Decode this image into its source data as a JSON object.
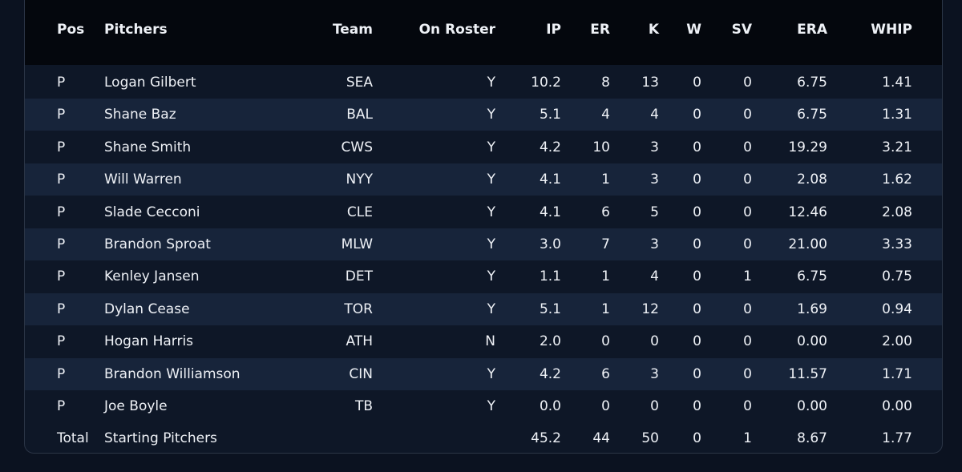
{
  "table": {
    "headers": [
      "Pos",
      "Pitchers",
      "Team",
      "On Roster",
      "IP",
      "ER",
      "K",
      "W",
      "SV",
      "ERA",
      "WHIP"
    ],
    "rows": [
      [
        "P",
        "Logan Gilbert",
        "SEA",
        "Y",
        "10.2",
        "8",
        "13",
        "0",
        "0",
        "6.75",
        "1.41"
      ],
      [
        "P",
        "Shane Baz",
        "BAL",
        "Y",
        "5.1",
        "4",
        "4",
        "0",
        "0",
        "6.75",
        "1.31"
      ],
      [
        "P",
        "Shane Smith",
        "CWS",
        "Y",
        "4.2",
        "10",
        "3",
        "0",
        "0",
        "19.29",
        "3.21"
      ],
      [
        "P",
        "Will Warren",
        "NYY",
        "Y",
        "4.1",
        "1",
        "3",
        "0",
        "0",
        "2.08",
        "1.62"
      ],
      [
        "P",
        "Slade Cecconi",
        "CLE",
        "Y",
        "4.1",
        "6",
        "5",
        "0",
        "0",
        "12.46",
        "2.08"
      ],
      [
        "P",
        "Brandon Sproat",
        "MLW",
        "Y",
        "3.0",
        "7",
        "3",
        "0",
        "0",
        "21.00",
        "3.33"
      ],
      [
        "P",
        "Kenley Jansen",
        "DET",
        "Y",
        "1.1",
        "1",
        "4",
        "0",
        "1",
        "6.75",
        "0.75"
      ],
      [
        "P",
        "Dylan Cease",
        "TOR",
        "Y",
        "5.1",
        "1",
        "12",
        "0",
        "0",
        "1.69",
        "0.94"
      ],
      [
        "P",
        "Hogan Harris",
        "ATH",
        "N",
        "2.0",
        "0",
        "0",
        "0",
        "0",
        "0.00",
        "2.00"
      ],
      [
        "P",
        "Brandon Williamson",
        "CIN",
        "Y",
        "4.2",
        "6",
        "3",
        "0",
        "0",
        "11.57",
        "1.71"
      ],
      [
        "P",
        "Joe Boyle",
        "TB",
        "Y",
        "0.0",
        "0",
        "0",
        "0",
        "0",
        "0.00",
        "0.00"
      ]
    ],
    "total": [
      "Total",
      "Starting Pitchers",
      null,
      null,
      "45.2",
      "44",
      "50",
      "0",
      "1",
      "8.67",
      "1.77"
    ]
  }
}
